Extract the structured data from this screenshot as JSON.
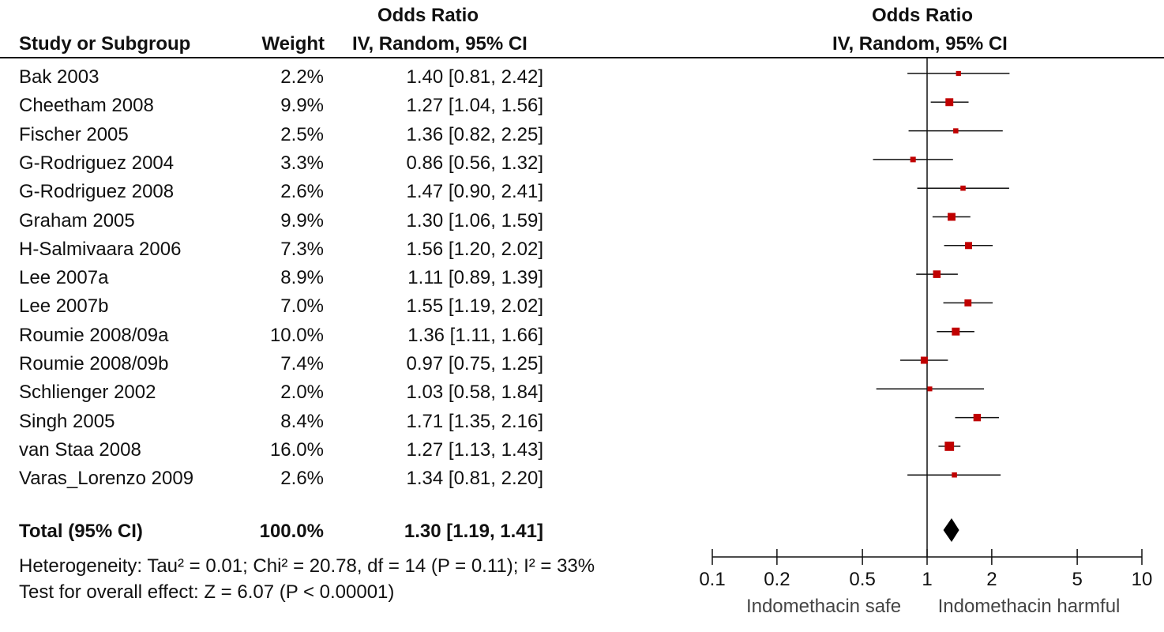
{
  "header": {
    "left_group_title": "Odds Ratio",
    "right_group_title": "Odds Ratio",
    "col_study": "Study or Subgroup",
    "col_weight": "Weight",
    "col_ci": "IV, Random, 95% CI",
    "right_method": "IV, Random, 95% CI"
  },
  "footer": {
    "heterogeneity": "Heterogeneity: Tau² = 0.01; Chi² = 20.78, df = 14 (P = 0.11); I² = 33%",
    "overall_effect": "Test for overall effect: Z = 6.07 (P < 0.00001)"
  },
  "chart_data": {
    "type": "forest",
    "x_scale": "log",
    "xlim": [
      0.1,
      10
    ],
    "xticks": [
      0.1,
      0.2,
      0.5,
      1,
      2,
      5,
      10
    ],
    "xtick_labels": [
      "0.1",
      "0.2",
      "0.5",
      "1",
      "2",
      "5",
      "10"
    ],
    "left_label": "Indomethacin safe",
    "right_label": "Indomethacin harmful",
    "colors": {
      "marker": "#c00000",
      "line": "#111111",
      "diamond": "#000000"
    },
    "studies": [
      {
        "name": "Bak 2003",
        "weight": "2.2%",
        "ci_text": "1.40 [0.81, 2.42]",
        "or": 1.4,
        "lo": 0.81,
        "hi": 2.42,
        "w": 2.2
      },
      {
        "name": "Cheetham 2008",
        "weight": "9.9%",
        "ci_text": "1.27 [1.04, 1.56]",
        "or": 1.27,
        "lo": 1.04,
        "hi": 1.56,
        "w": 9.9
      },
      {
        "name": "Fischer 2005",
        "weight": "2.5%",
        "ci_text": "1.36 [0.82, 2.25]",
        "or": 1.36,
        "lo": 0.82,
        "hi": 2.25,
        "w": 2.5
      },
      {
        "name": "G-Rodriguez 2004",
        "weight": "3.3%",
        "ci_text": "0.86 [0.56, 1.32]",
        "or": 0.86,
        "lo": 0.56,
        "hi": 1.32,
        "w": 3.3
      },
      {
        "name": "G-Rodriguez 2008",
        "weight": "2.6%",
        "ci_text": "1.47 [0.90, 2.41]",
        "or": 1.47,
        "lo": 0.9,
        "hi": 2.41,
        "w": 2.6
      },
      {
        "name": "Graham 2005",
        "weight": "9.9%",
        "ci_text": "1.30 [1.06, 1.59]",
        "or": 1.3,
        "lo": 1.06,
        "hi": 1.59,
        "w": 9.9
      },
      {
        "name": "H-Salmivaara 2006",
        "weight": "7.3%",
        "ci_text": "1.56 [1.20, 2.02]",
        "or": 1.56,
        "lo": 1.2,
        "hi": 2.02,
        "w": 7.3
      },
      {
        "name": "Lee 2007a",
        "weight": "8.9%",
        "ci_text": "1.11 [0.89, 1.39]",
        "or": 1.11,
        "lo": 0.89,
        "hi": 1.39,
        "w": 8.9
      },
      {
        "name": "Lee 2007b",
        "weight": "7.0%",
        "ci_text": "1.55 [1.19, 2.02]",
        "or": 1.55,
        "lo": 1.19,
        "hi": 2.02,
        "w": 7.0
      },
      {
        "name": "Roumie 2008/09a",
        "weight": "10.0%",
        "ci_text": "1.36 [1.11, 1.66]",
        "or": 1.36,
        "lo": 1.11,
        "hi": 1.66,
        "w": 10.0
      },
      {
        "name": "Roumie 2008/09b",
        "weight": "7.4%",
        "ci_text": "0.97 [0.75, 1.25]",
        "or": 0.97,
        "lo": 0.75,
        "hi": 1.25,
        "w": 7.4
      },
      {
        "name": "Schlienger 2002",
        "weight": "2.0%",
        "ci_text": "1.03 [0.58, 1.84]",
        "or": 1.03,
        "lo": 0.58,
        "hi": 1.84,
        "w": 2.0
      },
      {
        "name": "Singh 2005",
        "weight": "8.4%",
        "ci_text": "1.71 [1.35, 2.16]",
        "or": 1.71,
        "lo": 1.35,
        "hi": 2.16,
        "w": 8.4
      },
      {
        "name": "van Staa 2008",
        "weight": "16.0%",
        "ci_text": "1.27 [1.13, 1.43]",
        "or": 1.27,
        "lo": 1.13,
        "hi": 1.43,
        "w": 16.0
      },
      {
        "name": "Varas_Lorenzo 2009",
        "weight": "2.6%",
        "ci_text": "1.34 [0.81, 2.20]",
        "or": 1.34,
        "lo": 0.81,
        "hi": 2.2,
        "w": 2.6
      }
    ],
    "total": {
      "name": "Total (95% CI)",
      "weight": "100.0%",
      "ci_text": "1.30 [1.19, 1.41]",
      "or": 1.3,
      "lo": 1.19,
      "hi": 1.41
    }
  }
}
